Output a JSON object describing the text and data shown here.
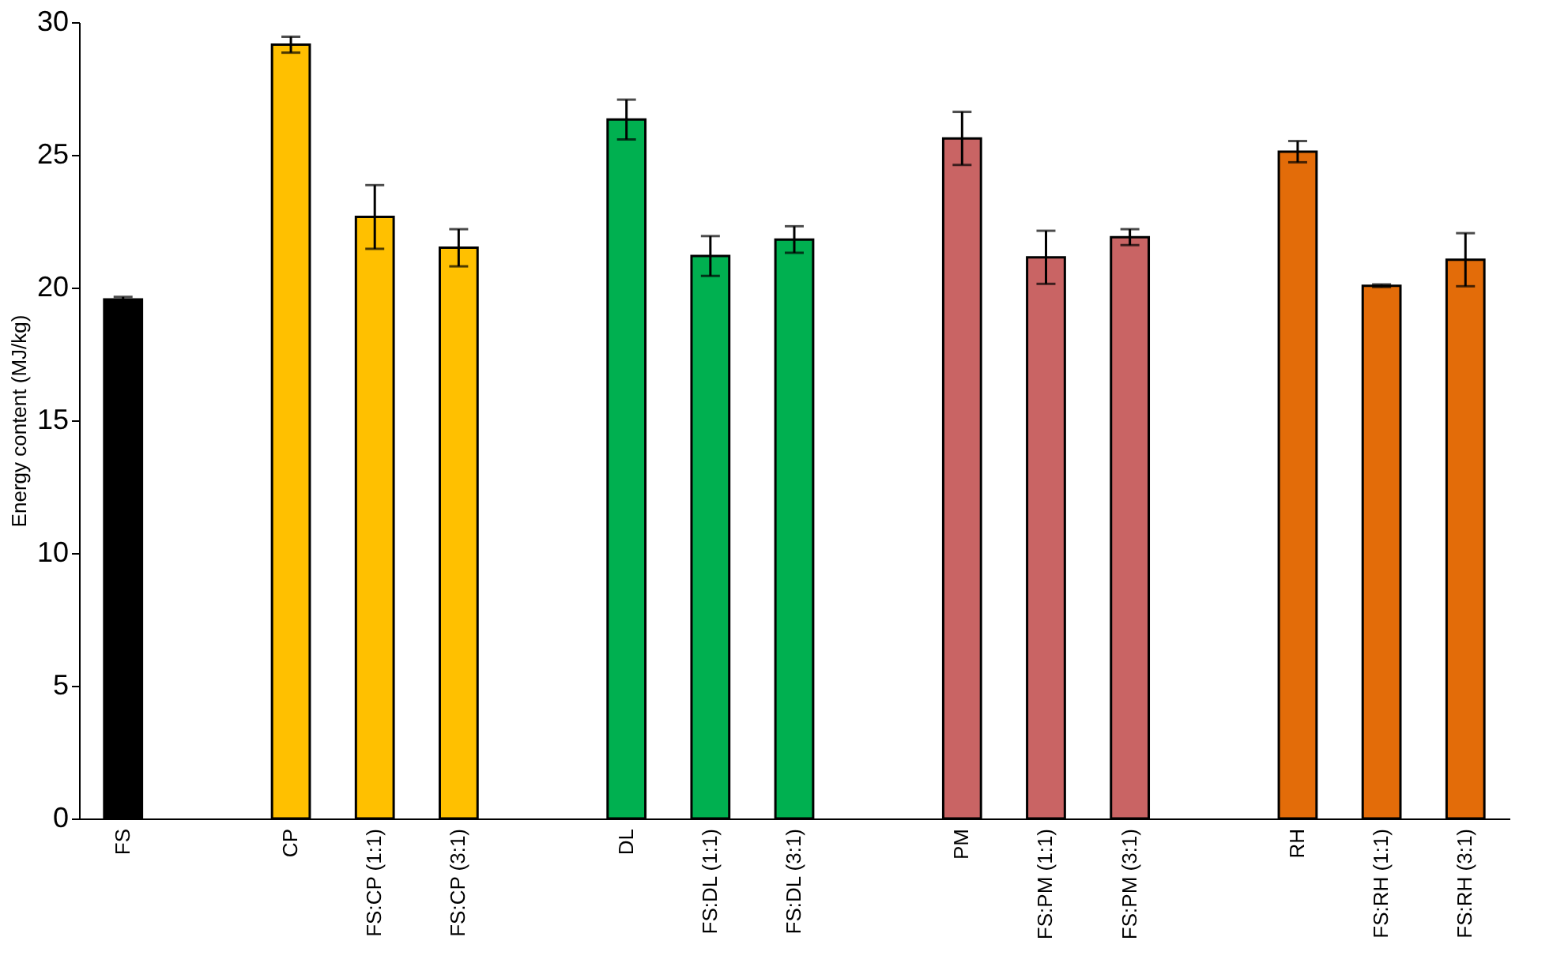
{
  "chart_data": {
    "type": "bar",
    "ylabel": "Energy content (MJ/kg)",
    "categories": [
      "FS",
      null,
      "CP",
      "FS:CP (1:1)",
      "FS:CP (3:1)",
      null,
      "DL",
      "FS:DL (1:1)",
      "FS:DL (3:1)",
      null,
      "PM",
      "FS:PM (1:1)",
      "FS:PM (3:1)",
      null,
      "RH",
      "FS:RH (1:1)",
      "FS:RH (3:1)"
    ],
    "values": [
      19.55,
      null,
      29.15,
      22.66,
      21.5,
      null,
      26.33,
      21.19,
      21.81,
      null,
      25.62,
      21.14,
      21.9,
      null,
      25.12,
      20.07,
      21.05
    ],
    "errors": [
      0.1,
      null,
      0.3,
      1.2,
      0.7,
      null,
      0.75,
      0.75,
      0.5,
      null,
      1.0,
      1.0,
      0.3,
      null,
      0.4,
      0.05,
      1.0
    ],
    "colors": [
      "#000000",
      null,
      "#ffc000",
      "#ffc000",
      "#ffc000",
      null,
      "#00b050",
      "#00b050",
      "#00b050",
      null,
      "#c96464",
      "#c96464",
      "#c96464",
      null,
      "#e36c09",
      "#e36c09",
      "#e36c09"
    ],
    "ylim": [
      0,
      30
    ],
    "yticks": [
      0,
      5,
      10,
      15,
      20,
      25,
      30
    ],
    "grid": false
  }
}
